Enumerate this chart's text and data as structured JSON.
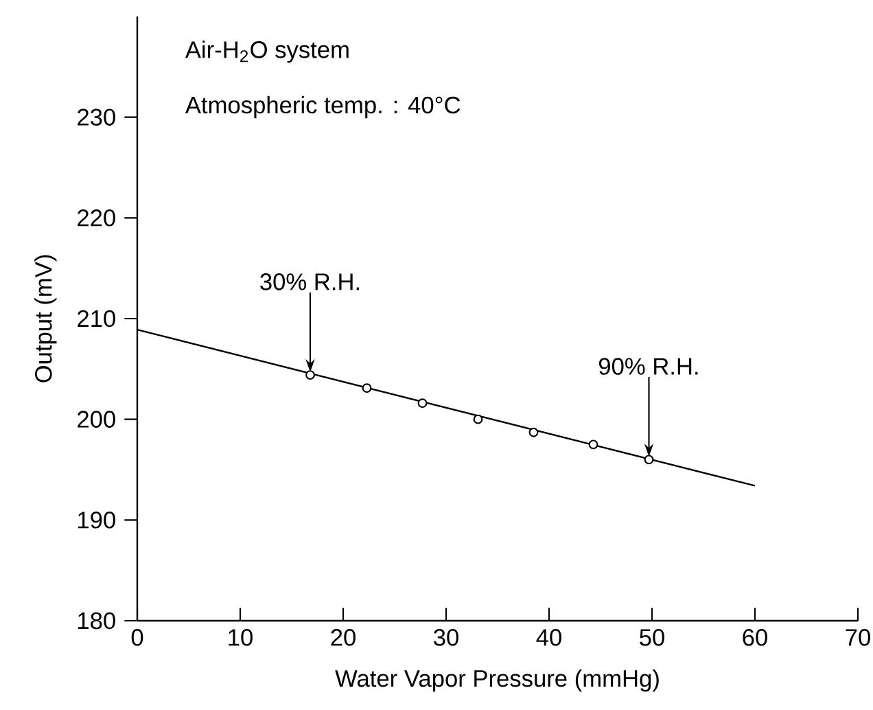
{
  "chart_data": {
    "type": "scatter",
    "xlabel": "Water Vapor Pressure (mmHg)",
    "ylabel": "Output (mV)",
    "xlim": [
      0,
      70
    ],
    "ylim": [
      180,
      240
    ],
    "xticks": [
      0,
      10,
      20,
      30,
      40,
      50,
      60,
      70
    ],
    "yticks": [
      180,
      190,
      200,
      210,
      220,
      230
    ],
    "series": [
      {
        "type": "scatter",
        "x": [
          16.8,
          22.3,
          27.7,
          33.1,
          38.5,
          44.3,
          49.7
        ],
        "values": [
          204.4,
          203.1,
          201.6,
          200.0,
          198.7,
          197.5,
          196.0
        ],
        "color": "#000000",
        "marker": "circle"
      },
      {
        "type": "line",
        "x": [
          0,
          60
        ],
        "values": [
          208.9,
          193.4
        ],
        "color": "#000000",
        "marker": "none",
        "line_style": "solid"
      }
    ],
    "annotations": [
      "Air-H$_{2}$O system",
      "Atmospheric temp. : 40°C",
      {
        "text": "30% R.H.",
        "x": 16.8,
        "y": 204.4
      },
      {
        "text": "90% R.H.",
        "x": 49.7,
        "y": 196.0
      }
    ]
  }
}
